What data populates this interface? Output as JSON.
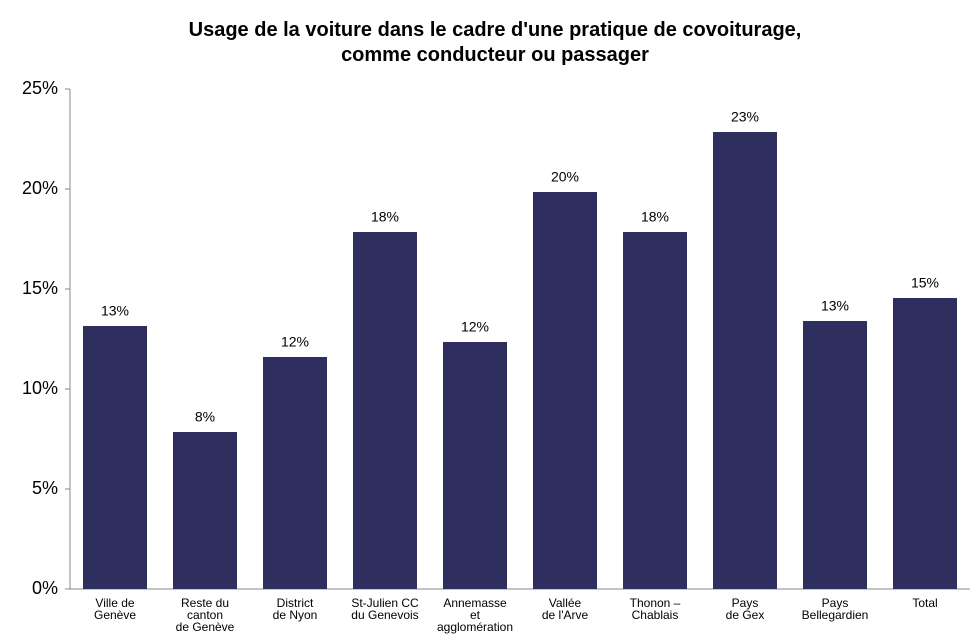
{
  "chart_data": {
    "type": "bar",
    "title": "Usage de la voiture dans le cadre d'une pratique de covoiturage,\ncomme conducteur ou passager",
    "categories": [
      "Ville de\nGenève",
      "Reste du\ncanton\nde Genève",
      "District\nde Nyon",
      "St-Julien CC\ndu Genevois",
      "Annemasse\net\nagglomération",
      "Vallée\nde l'Arve",
      "Thonon –\nChablais",
      "Pays\nde Gex",
      "Pays\nBellegardien",
      "Total"
    ],
    "values": [
      13.15,
      7.85,
      11.6,
      17.85,
      12.35,
      19.85,
      17.85,
      22.85,
      13.4,
      14.55
    ],
    "value_labels": [
      "13%",
      "8%",
      "12%",
      "18%",
      "12%",
      "20%",
      "18%",
      "23%",
      "13%",
      "15%"
    ],
    "color": "#2f2f5f",
    "ylim": [
      0,
      25
    ],
    "yticks": [
      {
        "value": 0,
        "label": "0%"
      },
      {
        "value": 5,
        "label": "5%"
      },
      {
        "value": 10,
        "label": "10%"
      },
      {
        "value": 15,
        "label": "15%"
      },
      {
        "value": 20,
        "label": "20%"
      },
      {
        "value": 25,
        "label": "25%"
      }
    ],
    "grid": false
  }
}
